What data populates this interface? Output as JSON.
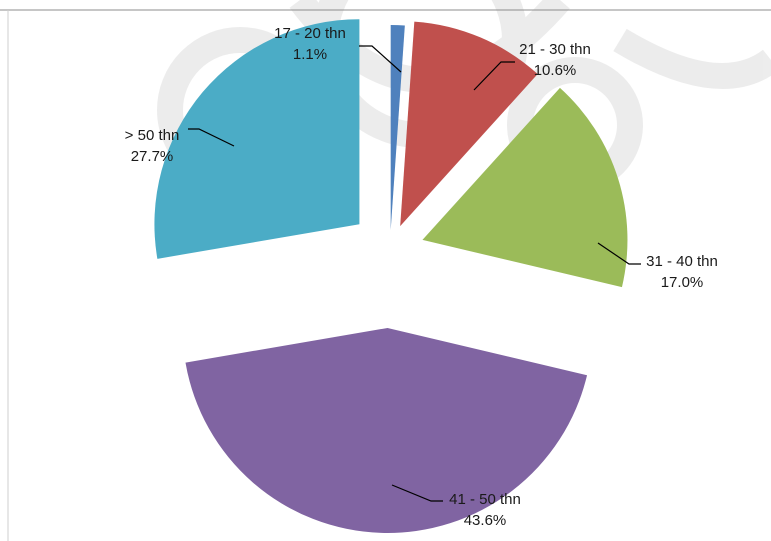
{
  "chart_data": {
    "type": "pie",
    "title": "",
    "exploded": true,
    "slices": [
      {
        "category": "17 - 20 thn",
        "value": 1.1,
        "percent_label": "1.1%",
        "color": "#4F81BD"
      },
      {
        "category": "21 - 30 thn",
        "value": 10.6,
        "percent_label": "10.6%",
        "color": "#C0504D"
      },
      {
        "category": "31 - 40 thn",
        "value": 17.0,
        "percent_label": "17.0%",
        "color": "#9BBB59"
      },
      {
        "category": "41 - 50 thn",
        "value": 43.6,
        "percent_label": "43.6%",
        "color": "#8064A2"
      },
      {
        "category": "> 50 thn",
        "value": 27.7,
        "percent_label": "27.7%",
        "color": "#4BACC6"
      }
    ],
    "legend": "none",
    "data_labels": "outside with leader lines"
  }
}
